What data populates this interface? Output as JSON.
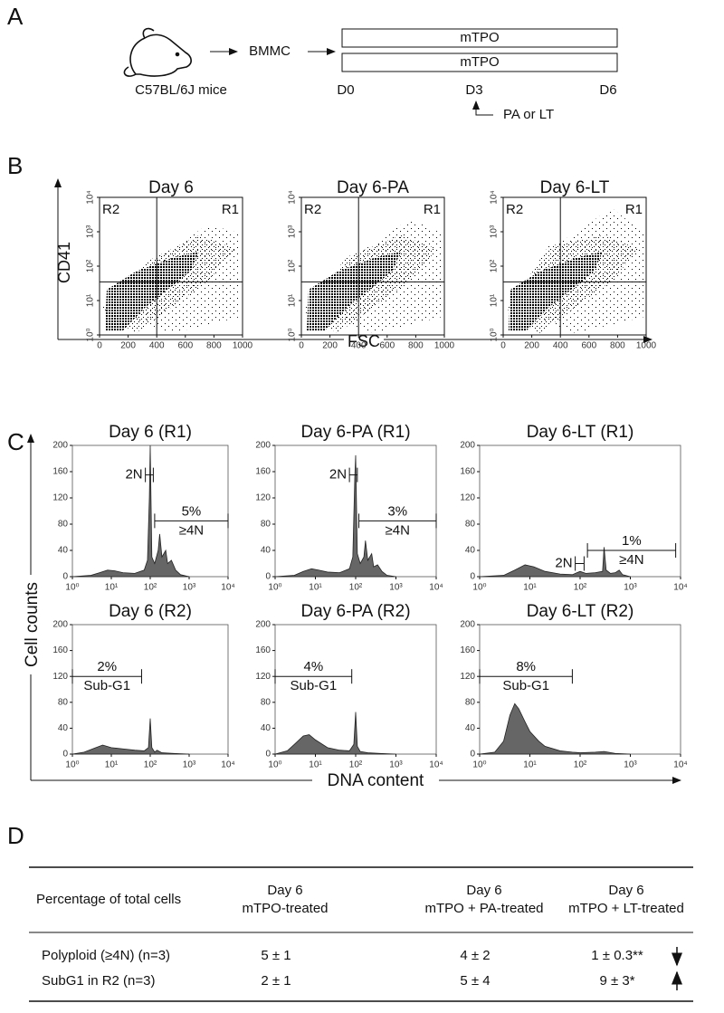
{
  "panel_a": {
    "label": "A",
    "source": "C57BL/6J mice",
    "cells": "BMMC",
    "bars": [
      "mTPO",
      "mTPO"
    ],
    "days": [
      "D0",
      "D3",
      "D6"
    ],
    "treatment": "PA or LT"
  },
  "panel_b": {
    "label": "B",
    "y_label": "CD41",
    "x_label": "FSC",
    "axes": {
      "xlim": [
        0,
        1000
      ],
      "xticks": [
        0,
        200,
        400,
        600,
        800,
        1000
      ],
      "ylim": [
        1,
        10000
      ],
      "log_y": true,
      "yticks": [
        {
          "value": 1,
          "label": "10⁰"
        },
        {
          "value": 10,
          "label": "10¹"
        },
        {
          "value": 100,
          "label": "10²"
        },
        {
          "value": 1000,
          "label": "10³"
        },
        {
          "value": 10000,
          "label": "10⁴"
        }
      ]
    },
    "plots": [
      {
        "title": "Day 6",
        "gate_x": 400,
        "gate_y": 35,
        "regions": [
          "R2",
          "R1"
        ]
      },
      {
        "title": "Day 6-PA",
        "gate_x": 400,
        "gate_y": 35,
        "regions": [
          "R2",
          "R1"
        ]
      },
      {
        "title": "Day 6-LT",
        "gate_x": 400,
        "gate_y": 35,
        "regions": [
          "R2",
          "R1"
        ]
      }
    ]
  },
  "panel_c": {
    "label": "C",
    "y_label": "Cell counts",
    "x_label": "DNA content",
    "axes": {
      "xlim": [
        1,
        10000
      ],
      "log_x": true,
      "ylim": [
        0,
        200
      ],
      "yticks": [
        0,
        40,
        80,
        120,
        160,
        200
      ],
      "xticks": [
        {
          "value": 1,
          "label": "10⁰"
        },
        {
          "value": 10,
          "label": "10¹"
        },
        {
          "value": 100,
          "label": "10²"
        },
        {
          "value": 1000,
          "label": "10³"
        },
        {
          "value": 10000,
          "label": "10⁴"
        }
      ]
    },
    "plots": [
      {
        "title": "Day 6 (R1)",
        "x": [
          1,
          3,
          5,
          8,
          12,
          20,
          40,
          70,
          85,
          95,
          100,
          110,
          130,
          160,
          175,
          200,
          250,
          280,
          350,
          450,
          600,
          1000
        ],
        "values": [
          0,
          2,
          6,
          10,
          9,
          6,
          5,
          10,
          25,
          120,
          200,
          30,
          20,
          40,
          65,
          30,
          40,
          20,
          25,
          10,
          3,
          0
        ],
        "gates": [
          {
            "range": [
              75,
              120
            ],
            "count": 155,
            "left": "2N"
          },
          {
            "range": [
              130,
              10000
            ],
            "count": 85,
            "above": "5%",
            "below": "≥4N"
          }
        ]
      },
      {
        "title": "Day 6-PA (R1)",
        "x": [
          1,
          3,
          5,
          8,
          12,
          20,
          40,
          70,
          85,
          95,
          100,
          110,
          130,
          160,
          175,
          200,
          250,
          280,
          350,
          450,
          600,
          1000
        ],
        "values": [
          0,
          2,
          8,
          12,
          10,
          7,
          6,
          12,
          30,
          150,
          185,
          35,
          20,
          30,
          55,
          25,
          35,
          15,
          18,
          8,
          2,
          0
        ],
        "gates": [
          {
            "range": [
              70,
              110
            ],
            "count": 155,
            "left": "2N"
          },
          {
            "range": [
              120,
              10000
            ],
            "count": 85,
            "above": "3%",
            "below": "≥4N"
          }
        ]
      },
      {
        "title": "Day 6-LT (R1)",
        "x": [
          1,
          3,
          5,
          8,
          12,
          20,
          40,
          70,
          100,
          130,
          200,
          280,
          300,
          330,
          400,
          500,
          600,
          700,
          1000
        ],
        "values": [
          0,
          2,
          10,
          18,
          15,
          8,
          4,
          3,
          8,
          5,
          6,
          8,
          45,
          10,
          5,
          6,
          10,
          3,
          0
        ],
        "gates": [
          {
            "range": [
              80,
              120
            ],
            "count": 20,
            "left": "2N"
          },
          {
            "range": [
              140,
              8000
            ],
            "count": 40,
            "above": "1%",
            "below": "≥4N"
          }
        ]
      },
      {
        "title": "Day 6 (R2)",
        "x": [
          1,
          2,
          4,
          6,
          10,
          20,
          40,
          70,
          90,
          100,
          110,
          130,
          150,
          200,
          400,
          1000
        ],
        "values": [
          0,
          3,
          10,
          14,
          10,
          8,
          6,
          5,
          10,
          55,
          10,
          3,
          6,
          2,
          1,
          0
        ],
        "gates": [
          {
            "range": [
              1,
              60
            ],
            "count": 120,
            "above": "2%",
            "below": "Sub-G1"
          }
        ]
      },
      {
        "title": "Day 6-PA (R2)",
        "x": [
          1,
          2,
          3,
          5,
          7,
          10,
          20,
          40,
          70,
          90,
          100,
          110,
          130,
          200,
          400,
          1000
        ],
        "values": [
          0,
          5,
          15,
          28,
          30,
          22,
          10,
          6,
          5,
          15,
          65,
          12,
          4,
          2,
          1,
          0
        ],
        "gates": [
          {
            "range": [
              1,
              80
            ],
            "count": 120,
            "above": "4%",
            "below": "Sub-G1"
          }
        ]
      },
      {
        "title": "Day 6-LT (R2)",
        "x": [
          1,
          2,
          3,
          4,
          5,
          6,
          8,
          10,
          15,
          20,
          40,
          70,
          100,
          200,
          300,
          500,
          1000
        ],
        "values": [
          0,
          3,
          20,
          60,
          78,
          70,
          50,
          35,
          20,
          12,
          5,
          3,
          2,
          3,
          4,
          1,
          0
        ],
        "gates": [
          {
            "range": [
              1,
              70
            ],
            "count": 120,
            "above": "8%",
            "below": "Sub-G1"
          }
        ]
      }
    ]
  },
  "panel_d": {
    "label": "D",
    "header": [
      "Percentage of total cells",
      [
        "Day 6",
        "mTPO-treated"
      ],
      [
        "Day 6",
        "mTPO + PA-treated"
      ],
      [
        "Day 6",
        "mTPO + LT-treated"
      ]
    ],
    "rows": [
      [
        "Polyploid (≥4N) (n=3)",
        "5  ± 1",
        "4  ± 2",
        "1  ± 0.3**"
      ],
      [
        "SubG1 in R2 (n=3)",
        "2  ± 1",
        "5  ± 4",
        "9  ± 3*"
      ]
    ]
  }
}
